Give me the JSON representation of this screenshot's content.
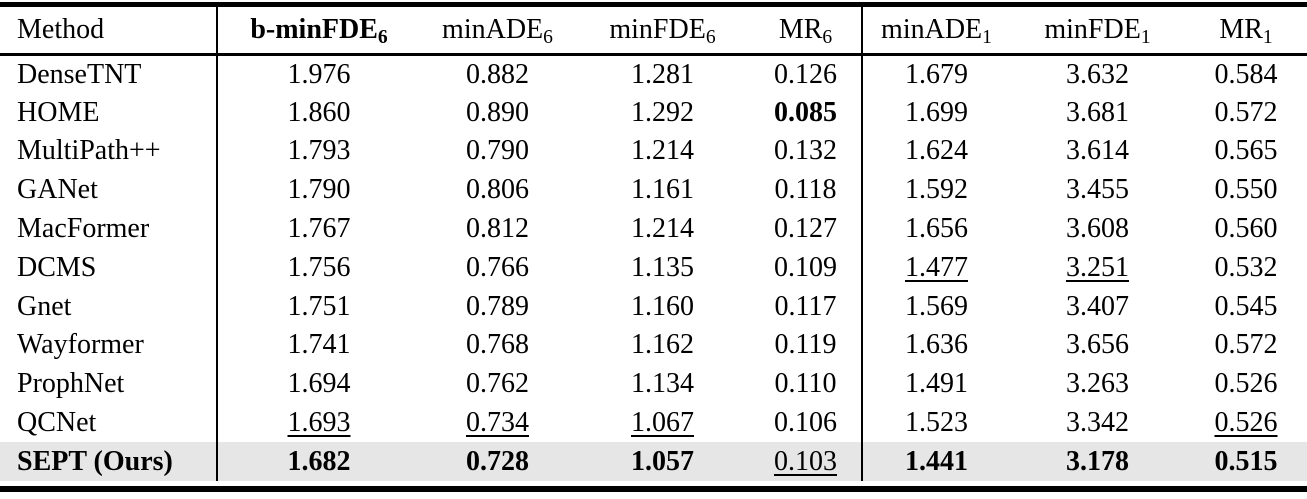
{
  "colors": {
    "highlight_row_background": "#e6e6e6",
    "rule": "#000000",
    "text": "#000000"
  },
  "table": {
    "header": {
      "method_label": "Method",
      "metric_columns": [
        {
          "name": "b-minFDE",
          "sub": "6",
          "bold": true
        },
        {
          "name": "minADE",
          "sub": "6",
          "bold": false
        },
        {
          "name": "minFDE",
          "sub": "6",
          "bold": false
        },
        {
          "name": "MR",
          "sub": "6",
          "bold": false
        },
        {
          "name": "minADE",
          "sub": "1",
          "bold": false
        },
        {
          "name": "minFDE",
          "sub": "1",
          "bold": false
        },
        {
          "name": "MR",
          "sub": "1",
          "bold": false
        }
      ]
    },
    "rows": [
      {
        "method": "DenseTNT",
        "method_bold": false,
        "highlight": false,
        "values": [
          "1.976",
          "0.882",
          "1.281",
          "0.126",
          "1.679",
          "3.632",
          "0.584"
        ],
        "marks": [
          "",
          "",
          "",
          "",
          "",
          "",
          ""
        ]
      },
      {
        "method": "HOME",
        "method_bold": false,
        "highlight": false,
        "values": [
          "1.860",
          "0.890",
          "1.292",
          "0.085",
          "1.699",
          "3.681",
          "0.572"
        ],
        "marks": [
          "",
          "",
          "",
          "b",
          "",
          "",
          ""
        ]
      },
      {
        "method": "MultiPath++",
        "method_bold": false,
        "highlight": false,
        "values": [
          "1.793",
          "0.790",
          "1.214",
          "0.132",
          "1.624",
          "3.614",
          "0.565"
        ],
        "marks": [
          "",
          "",
          "",
          "",
          "",
          "",
          ""
        ]
      },
      {
        "method": "GANet",
        "method_bold": false,
        "highlight": false,
        "values": [
          "1.790",
          "0.806",
          "1.161",
          "0.118",
          "1.592",
          "3.455",
          "0.550"
        ],
        "marks": [
          "",
          "",
          "",
          "",
          "",
          "",
          ""
        ]
      },
      {
        "method": "MacFormer",
        "method_bold": false,
        "highlight": false,
        "values": [
          "1.767",
          "0.812",
          "1.214",
          "0.127",
          "1.656",
          "3.608",
          "0.560"
        ],
        "marks": [
          "",
          "",
          "",
          "",
          "",
          "",
          ""
        ]
      },
      {
        "method": "DCMS",
        "method_bold": false,
        "highlight": false,
        "values": [
          "1.756",
          "0.766",
          "1.135",
          "0.109",
          "1.477",
          "3.251",
          "0.532"
        ],
        "marks": [
          "",
          "",
          "",
          "",
          "u",
          "u",
          ""
        ]
      },
      {
        "method": "Gnet",
        "method_bold": false,
        "highlight": false,
        "values": [
          "1.751",
          "0.789",
          "1.160",
          "0.117",
          "1.569",
          "3.407",
          "0.545"
        ],
        "marks": [
          "",
          "",
          "",
          "",
          "",
          "",
          ""
        ]
      },
      {
        "method": "Wayformer",
        "method_bold": false,
        "highlight": false,
        "values": [
          "1.741",
          "0.768",
          "1.162",
          "0.119",
          "1.636",
          "3.656",
          "0.572"
        ],
        "marks": [
          "",
          "",
          "",
          "",
          "",
          "",
          ""
        ]
      },
      {
        "method": "ProphNet",
        "method_bold": false,
        "highlight": false,
        "values": [
          "1.694",
          "0.762",
          "1.134",
          "0.110",
          "1.491",
          "3.263",
          "0.526"
        ],
        "marks": [
          "",
          "",
          "",
          "",
          "",
          "",
          ""
        ]
      },
      {
        "method": "QCNet",
        "method_bold": false,
        "highlight": false,
        "values": [
          "1.693",
          "0.734",
          "1.067",
          "0.106",
          "1.523",
          "3.342",
          "0.526"
        ],
        "marks": [
          "u",
          "u",
          "u",
          "",
          "",
          "",
          "u"
        ]
      },
      {
        "method": "SEPT (Ours)",
        "method_bold": true,
        "highlight": true,
        "values": [
          "1.682",
          "0.728",
          "1.057",
          "0.103",
          "1.441",
          "3.178",
          "0.515"
        ],
        "marks": [
          "b",
          "b",
          "b",
          "u",
          "b",
          "b",
          "b"
        ]
      }
    ]
  }
}
